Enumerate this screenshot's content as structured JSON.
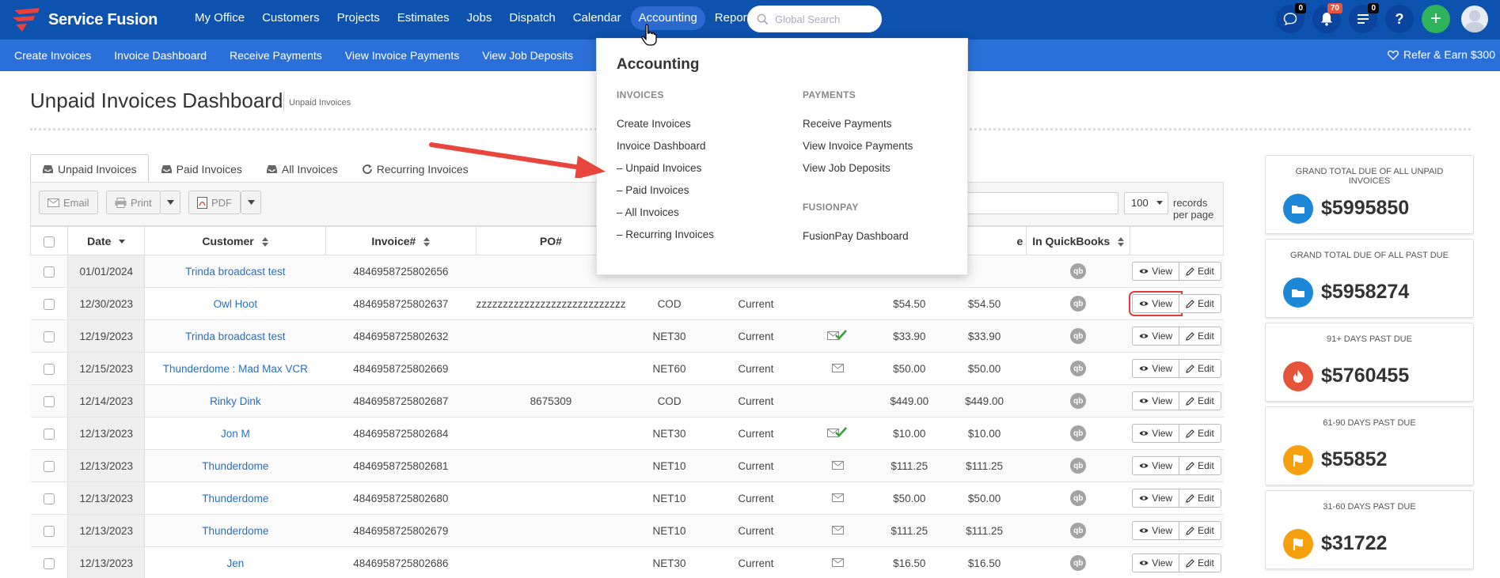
{
  "brand": {
    "name": "Service Fusion"
  },
  "topnav": {
    "items": [
      "My Office",
      "Customers",
      "Projects",
      "Estimates",
      "Jobs",
      "Dispatch",
      "Calendar",
      "Accounting",
      "Reports"
    ],
    "active": "Accounting",
    "search_placeholder": "Global Search",
    "badges": {
      "chat": "0",
      "notifications": "70",
      "tasks": "0"
    },
    "help": "?",
    "add": "+"
  },
  "subnav": {
    "items": [
      "Create Invoices",
      "Invoice Dashboard",
      "Receive Payments",
      "View Invoice Payments",
      "View Job Deposits"
    ],
    "refer": "Refer & Earn $300"
  },
  "page": {
    "title": "Unpaid Invoices Dashboard",
    "breadcrumb": "Unpaid Invoices"
  },
  "tabs": [
    "Unpaid Invoices",
    "Paid Invoices",
    "All Invoices",
    "Recurring Invoices"
  ],
  "toolbar": {
    "email": "Email",
    "print": "Print",
    "pdf": "PDF",
    "records_value": "100",
    "records_label": "records per page"
  },
  "table": {
    "headers": {
      "date": "Date",
      "customer": "Customer",
      "invoice": "Invoice#",
      "po": "PO#",
      "balance_suffix": "e",
      "quickbooks": "In QuickBooks"
    },
    "view_label": "View",
    "edit_label": "Edit",
    "qb_label": "qb",
    "rows": [
      {
        "date": "01/01/2024",
        "customer": "Trinda broadcast test",
        "invoice": "4846958725802656",
        "po": "",
        "terms": "",
        "status": "",
        "sent": "",
        "total": "",
        "balance": ""
      },
      {
        "date": "12/30/2023",
        "customer": "Owl Hoot",
        "invoice": "4846958725802637",
        "po": "zzzzzzzzzzzzzzzzzzzzzzzzzzzz",
        "terms": "COD",
        "status": "Current",
        "sent": "",
        "total": "$54.50",
        "balance": "$54.50"
      },
      {
        "date": "12/19/2023",
        "customer": "Trinda broadcast test",
        "invoice": "4846958725802632",
        "po": "",
        "terms": "NET30",
        "status": "Current",
        "sent": "check",
        "total": "$33.90",
        "balance": "$33.90"
      },
      {
        "date": "12/15/2023",
        "customer": "Thunderdome : Mad Max VCR",
        "invoice": "4846958725802669",
        "po": "",
        "terms": "NET60",
        "status": "Current",
        "sent": "mail",
        "total": "$50.00",
        "balance": "$50.00"
      },
      {
        "date": "12/14/2023",
        "customer": "Rinky Dink",
        "invoice": "4846958725802687",
        "po": "8675309",
        "terms": "COD",
        "status": "Current",
        "sent": "",
        "total": "$449.00",
        "balance": "$449.00"
      },
      {
        "date": "12/13/2023",
        "customer": "Jon M",
        "invoice": "4846958725802684",
        "po": "",
        "terms": "NET30",
        "status": "Current",
        "sent": "check",
        "total": "$10.00",
        "balance": "$10.00"
      },
      {
        "date": "12/13/2023",
        "customer": "Thunderdome",
        "invoice": "4846958725802681",
        "po": "",
        "terms": "NET10",
        "status": "Current",
        "sent": "mail",
        "total": "$111.25",
        "balance": "$111.25"
      },
      {
        "date": "12/13/2023",
        "customer": "Thunderdome",
        "invoice": "4846958725802680",
        "po": "",
        "terms": "NET10",
        "status": "Current",
        "sent": "mail",
        "total": "$50.00",
        "balance": "$50.00"
      },
      {
        "date": "12/13/2023",
        "customer": "Thunderdome",
        "invoice": "4846958725802679",
        "po": "",
        "terms": "NET10",
        "status": "Current",
        "sent": "mail",
        "total": "$111.25",
        "balance": "$111.25"
      },
      {
        "date": "12/13/2023",
        "customer": "Jen",
        "invoice": "4846958725802686",
        "po": "",
        "terms": "NET30",
        "status": "Current",
        "sent": "mail",
        "total": "$16.50",
        "balance": "$16.50"
      }
    ]
  },
  "cards": [
    {
      "label": "GRAND TOTAL DUE OF ALL UNPAID INVOICES",
      "value": "$5995850",
      "icon": "folder-icon",
      "color": "#1e88d8"
    },
    {
      "label": "GRAND TOTAL DUE OF ALL PAST DUE",
      "value": "$5958274",
      "icon": "folder-icon",
      "color": "#1e88d8"
    },
    {
      "label": "91+ DAYS PAST DUE",
      "value": "$5760455",
      "icon": "fire-icon",
      "color": "#e5533b"
    },
    {
      "label": "61-90 DAYS PAST DUE",
      "value": "$55852",
      "icon": "flag-icon",
      "color": "#f5a00f"
    },
    {
      "label": "31-60 DAYS PAST DUE",
      "value": "$31722",
      "icon": "flag-icon",
      "color": "#f5a00f"
    }
  ],
  "dropdown": {
    "title": "Accounting",
    "invoices_head": "INVOICES",
    "invoices": [
      "Create Invoices",
      "Invoice Dashboard",
      "– Unpaid Invoices",
      "– Paid Invoices",
      "– All Invoices",
      "– Recurring Invoices"
    ],
    "payments_head": "PAYMENTS",
    "payments": [
      "Receive Payments",
      "View Invoice Payments",
      "View Job Deposits"
    ],
    "fusionpay_head": "FUSIONPAY",
    "fusionpay": [
      "FusionPay Dashboard"
    ]
  },
  "colors": {
    "nav": "#0e52b0",
    "subnav": "#2a70d8",
    "link": "#2a6fbd",
    "highlight": "#e03b3b"
  }
}
